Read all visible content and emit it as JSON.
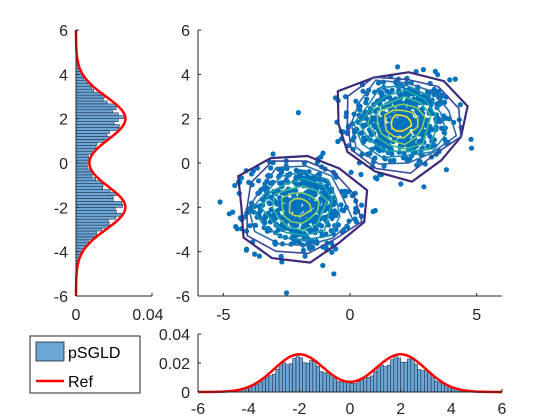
{
  "chart_data": [
    {
      "type": "scatter",
      "panel": "joint",
      "xlim": [
        -6,
        6
      ],
      "ylim": [
        -6,
        6
      ],
      "xticks": [
        "-5",
        "0",
        "5"
      ],
      "yticks": [
        "-6",
        "-4",
        "-2",
        "0",
        "2",
        "4",
        "6"
      ],
      "clusters": [
        {
          "center": [
            2.0,
            1.8
          ],
          "spread": 1.0
        },
        {
          "center": [
            -2.0,
            -2.0
          ],
          "spread": 1.0
        }
      ],
      "contour_colors": [
        "#3e2a7a",
        "#3a4a9a",
        "#2f6aa8",
        "#1f88b0",
        "#20a2a5",
        "#3fb891",
        "#7ccb6f",
        "#c0d44c",
        "#fbe12a"
      ],
      "point_color": "#0072bd"
    },
    {
      "type": "bar",
      "panel": "marginal-y",
      "orientation": "horizontal",
      "xlim": [
        0,
        0.04
      ],
      "ylim": [
        -6,
        6
      ],
      "xticks": [
        "0",
        "0.04"
      ],
      "yticks": [
        "-6",
        "-4",
        "-2",
        "0",
        "2",
        "4",
        "6"
      ],
      "series": [
        {
          "name": "pSGLD"
        },
        {
          "name": "Ref"
        }
      ],
      "ref_peak": 0.026
    },
    {
      "type": "bar",
      "panel": "marginal-x",
      "orientation": "vertical",
      "xlim": [
        -6,
        6
      ],
      "ylim": [
        0,
        0.04
      ],
      "xticks": [
        "-6",
        "-4",
        "-2",
        "0",
        "2",
        "4",
        "6"
      ],
      "yticks": [
        "0",
        "0.02",
        "0.04"
      ],
      "series": [
        {
          "name": "pSGLD"
        },
        {
          "name": "Ref"
        }
      ],
      "ref_peak": 0.026
    }
  ],
  "legend": {
    "items": [
      {
        "label": "pSGLD",
        "color": "#6aa7d6"
      },
      {
        "label": "Ref",
        "color": "#ff0000"
      }
    ]
  }
}
